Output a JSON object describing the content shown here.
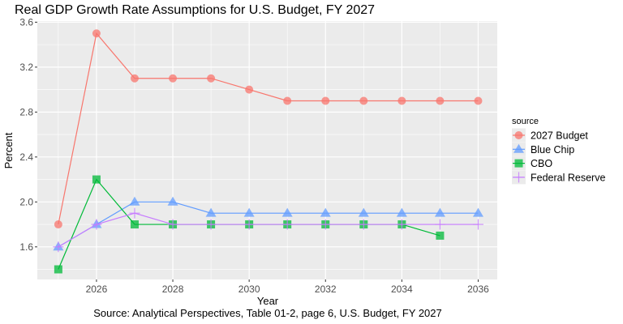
{
  "chart_data": {
    "type": "line",
    "title": "Real GDP Growth Rate Assumptions for U.S. Budget, FY 2027",
    "xlabel": "Year",
    "ylabel": "Percent",
    "caption": "Source: Analytical Perspectives, Table 01-2, page 6, U.S. Budget, FY 2027",
    "x": [
      2025,
      2026,
      2027,
      2028,
      2029,
      2030,
      2031,
      2032,
      2033,
      2034,
      2035,
      2036
    ],
    "xlim": [
      2024.45,
      2036.5
    ],
    "ylim": [
      1.31,
      3.61
    ],
    "x_ticks": [
      2026,
      2028,
      2030,
      2032,
      2034,
      2036
    ],
    "x_tick_labels": [
      "2026",
      "2028",
      "2030",
      "2032",
      "2034",
      "2036"
    ],
    "y_ticks": [
      1.6,
      2.0,
      2.4,
      2.8,
      3.2,
      3.6
    ],
    "y_tick_labels": [
      "1.6",
      "2.0",
      "2.4",
      "2.8",
      "3.2",
      "3.6"
    ],
    "grid": true,
    "legend": {
      "title": "source",
      "position": "right"
    },
    "series": [
      {
        "name": "2027 Budget",
        "marker": "circle",
        "color": "#F8766D",
        "values": [
          1.8,
          3.5,
          3.1,
          3.1,
          3.1,
          3.0,
          2.9,
          2.9,
          2.9,
          2.9,
          2.9,
          2.9
        ]
      },
      {
        "name": "Blue Chip",
        "marker": "triangle",
        "color": "#619CFF",
        "values": [
          1.6,
          1.8,
          2.0,
          2.0,
          1.9,
          1.9,
          1.9,
          1.9,
          1.9,
          1.9,
          1.9,
          1.9
        ]
      },
      {
        "name": "CBO",
        "marker": "square",
        "color": "#00BA38",
        "values": [
          1.4,
          2.2,
          1.8,
          1.8,
          1.8,
          1.8,
          1.8,
          1.8,
          1.8,
          1.8,
          1.7,
          null
        ]
      },
      {
        "name": "Federal Reserve",
        "marker": "plus",
        "color": "#C77CFF",
        "values": [
          1.6,
          1.8,
          1.9,
          1.8,
          1.8,
          1.8,
          1.8,
          1.8,
          1.8,
          1.8,
          1.8,
          1.8
        ]
      }
    ]
  }
}
